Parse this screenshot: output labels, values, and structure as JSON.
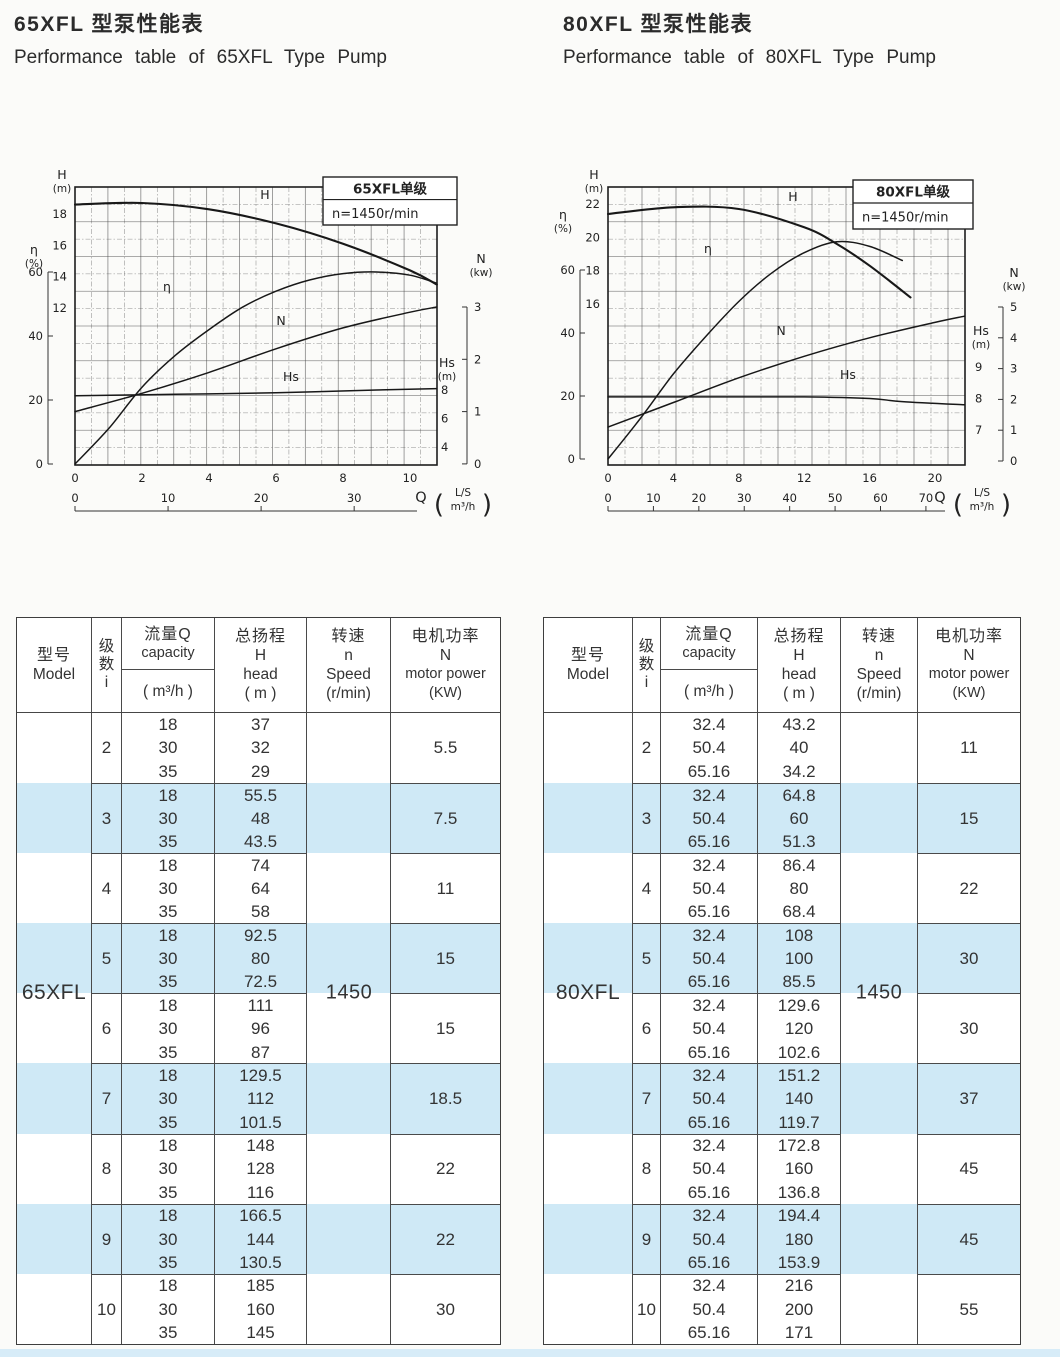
{
  "titles": {
    "left_zh": "65XFL 型泵性能表",
    "left_en": "Performance table of 65XFL Type Pump",
    "right_zh": "80XFL 型泵性能表",
    "right_en": "Performance table of 80XFL Type Pump"
  },
  "table_header": {
    "model_zh": "型号",
    "model_en": "Model",
    "stage_zh1": "级",
    "stage_zh2": "数",
    "stage_en": "i",
    "q_zh": "流量Q",
    "q_en": "capacity",
    "q_unit": "( m³/h )",
    "h_zh": "总扬程",
    "h_sym": "H",
    "h_en": "head",
    "h_unit": "( m )",
    "s_zh": "转速",
    "s_sym": "n",
    "s_en": "Speed",
    "s_unit": "(r/min)",
    "p_zh": "电机功率",
    "p_sym": "N",
    "p_en": "motor power",
    "p_unit": "(KW)"
  },
  "tables": [
    {
      "model": "65XFL",
      "speed": "1450",
      "groups": [
        {
          "i": "2",
          "q": [
            "18",
            "30",
            "35"
          ],
          "h": [
            "37",
            "32",
            "29"
          ],
          "p": "5.5"
        },
        {
          "i": "3",
          "q": [
            "18",
            "30",
            "35"
          ],
          "h": [
            "55.5",
            "48",
            "43.5"
          ],
          "p": "7.5"
        },
        {
          "i": "4",
          "q": [
            "18",
            "30",
            "35"
          ],
          "h": [
            "74",
            "64",
            "58"
          ],
          "p": "11"
        },
        {
          "i": "5",
          "q": [
            "18",
            "30",
            "35"
          ],
          "h": [
            "92.5",
            "80",
            "72.5"
          ],
          "p": "15"
        },
        {
          "i": "6",
          "q": [
            "18",
            "30",
            "35"
          ],
          "h": [
            "111",
            "96",
            "87"
          ],
          "p": "15"
        },
        {
          "i": "7",
          "q": [
            "18",
            "30",
            "35"
          ],
          "h": [
            "129.5",
            "112",
            "101.5"
          ],
          "p": "18.5"
        },
        {
          "i": "8",
          "q": [
            "18",
            "30",
            "35"
          ],
          "h": [
            "148",
            "128",
            "116"
          ],
          "p": "22"
        },
        {
          "i": "9",
          "q": [
            "18",
            "30",
            "35"
          ],
          "h": [
            "166.5",
            "144",
            "130.5"
          ],
          "p": "22"
        },
        {
          "i": "10",
          "q": [
            "18",
            "30",
            "35"
          ],
          "h": [
            "185",
            "160",
            "145"
          ],
          "p": "30"
        }
      ]
    },
    {
      "model": "80XFL",
      "speed": "1450",
      "groups": [
        {
          "i": "2",
          "q": [
            "32.4",
            "50.4",
            "65.16"
          ],
          "h": [
            "43.2",
            "40",
            "34.2"
          ],
          "p": "11"
        },
        {
          "i": "3",
          "q": [
            "32.4",
            "50.4",
            "65.16"
          ],
          "h": [
            "64.8",
            "60",
            "51.3"
          ],
          "p": "15"
        },
        {
          "i": "4",
          "q": [
            "32.4",
            "50.4",
            "65.16"
          ],
          "h": [
            "86.4",
            "80",
            "68.4"
          ],
          "p": "22"
        },
        {
          "i": "5",
          "q": [
            "32.4",
            "50.4",
            "65.16"
          ],
          "h": [
            "108",
            "100",
            "85.5"
          ],
          "p": "30"
        },
        {
          "i": "6",
          "q": [
            "32.4",
            "50.4",
            "65.16"
          ],
          "h": [
            "129.6",
            "120",
            "102.6"
          ],
          "p": "30"
        },
        {
          "i": "7",
          "q": [
            "32.4",
            "50.4",
            "65.16"
          ],
          "h": [
            "151.2",
            "140",
            "119.7"
          ],
          "p": "37"
        },
        {
          "i": "8",
          "q": [
            "32.4",
            "50.4",
            "65.16"
          ],
          "h": [
            "172.8",
            "160",
            "136.8"
          ],
          "p": "45"
        },
        {
          "i": "9",
          "q": [
            "32.4",
            "50.4",
            "65.16"
          ],
          "h": [
            "194.4",
            "180",
            "153.9"
          ],
          "p": "45"
        },
        {
          "i": "10",
          "q": [
            "32.4",
            "50.4",
            "65.16"
          ],
          "h": [
            "216",
            "200",
            "171"
          ],
          "p": "55"
        }
      ]
    }
  ],
  "chart_data": [
    {
      "type": "line",
      "title": "65XFL单级",
      "subtitle": "n=1450r/min",
      "x_label": "Q",
      "x_units": [
        "L/S",
        "m³/h"
      ],
      "x_ticks_ls": [
        0,
        2,
        4,
        6,
        8,
        10
      ],
      "x_ticks_m3h": [
        0,
        10,
        20,
        30
      ],
      "axes": {
        "H": {
          "label": "H",
          "unit": "(m)",
          "ticks": [
            18,
            16,
            14,
            12
          ]
        },
        "eta": {
          "label": "η",
          "unit": "(%)",
          "ticks": [
            60,
            40,
            20,
            0
          ]
        },
        "N": {
          "label": "N",
          "unit": "(kw)",
          "ticks": [
            3,
            2,
            1,
            0
          ]
        },
        "Hs": {
          "label": "Hs",
          "unit": "(m)",
          "ticks": [
            8,
            6,
            4
          ]
        }
      },
      "series": [
        {
          "name": "H",
          "axis": "H",
          "x": [
            0,
            2,
            4,
            6,
            8,
            10,
            10.8
          ],
          "y": [
            18.6,
            18.7,
            18.3,
            17.4,
            16.1,
            14.4,
            13.5
          ]
        },
        {
          "name": "η",
          "axis": "eta",
          "x": [
            0,
            1,
            2,
            3,
            4,
            5,
            6,
            7,
            8,
            9,
            10,
            10.8
          ],
          "y": [
            0,
            11,
            24,
            34,
            42,
            49,
            54,
            57.5,
            59.5,
            60,
            59,
            56.5
          ]
        },
        {
          "name": "N",
          "axis": "N",
          "x": [
            0,
            2,
            4,
            6,
            8,
            10,
            10.8
          ],
          "y": [
            1.0,
            1.35,
            1.75,
            2.2,
            2.6,
            2.9,
            3.0
          ]
        },
        {
          "name": "Hs",
          "axis": "Hs",
          "x": [
            0,
            3,
            6,
            9,
            10.8
          ],
          "y": [
            7.6,
            7.7,
            7.8,
            8.0,
            8.1
          ]
        }
      ]
    },
    {
      "type": "line",
      "title": "80XFL单级",
      "subtitle": "n=1450r/min",
      "x_label": "Q",
      "x_units": [
        "L/S",
        "m³/h"
      ],
      "x_ticks_ls": [
        0,
        4,
        8,
        12,
        16,
        20
      ],
      "x_ticks_m3h": [
        0,
        10,
        20,
        30,
        40,
        50,
        60,
        70
      ],
      "axes": {
        "H": {
          "label": "H",
          "unit": "(m)",
          "ticks": [
            22,
            20,
            18,
            16
          ]
        },
        "eta": {
          "label": "η",
          "unit": "(%)",
          "ticks": [
            60,
            40,
            20,
            0
          ]
        },
        "N": {
          "label": "N",
          "unit": "(kw)",
          "ticks": [
            5,
            4,
            3,
            2,
            1,
            0
          ]
        },
        "Hs": {
          "label": "Hs",
          "unit": "(m)",
          "ticks": [
            9,
            8,
            7
          ]
        }
      },
      "series": [
        {
          "name": "H",
          "axis": "H",
          "x": [
            0,
            4,
            8,
            12,
            14,
            16,
            18.5
          ],
          "y": [
            21.4,
            21.8,
            21.7,
            20.6,
            19.6,
            18.3,
            16.4
          ]
        },
        {
          "name": "η",
          "axis": "eta",
          "x": [
            0,
            2,
            4,
            6,
            8,
            10,
            12,
            14,
            16,
            18
          ],
          "y": [
            0,
            13,
            27,
            39,
            50,
            59,
            65.5,
            69,
            67.5,
            63
          ]
        },
        {
          "name": "N",
          "axis": "N",
          "x": [
            0,
            4,
            8,
            12,
            16,
            20,
            21.8
          ],
          "y": [
            1.1,
            1.9,
            2.7,
            3.4,
            4.0,
            4.5,
            4.7
          ]
        },
        {
          "name": "Hs",
          "axis": "Hs",
          "x": [
            0,
            6,
            12,
            16,
            18,
            21.8
          ],
          "y": [
            8.05,
            8.05,
            8.05,
            8.0,
            7.9,
            7.8
          ]
        }
      ]
    }
  ]
}
